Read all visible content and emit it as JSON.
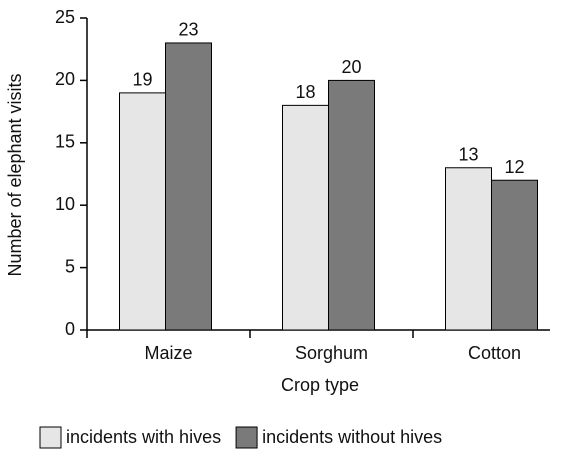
{
  "chart_data": {
    "type": "bar",
    "y_label": "Number of elephant visits",
    "x_label": "Crop type",
    "categories": [
      "Maize",
      "Sorghum",
      "Cotton"
    ],
    "series": [
      {
        "name": "incidents with hives",
        "color": "#e6e6e6",
        "values": [
          19,
          18,
          13
        ]
      },
      {
        "name": "incidents without hives",
        "color": "#7a7a7a",
        "values": [
          23,
          20,
          12
        ]
      }
    ],
    "ylim": [
      0,
      25
    ],
    "yticks": [
      0,
      5,
      10,
      15,
      20,
      25
    ]
  }
}
